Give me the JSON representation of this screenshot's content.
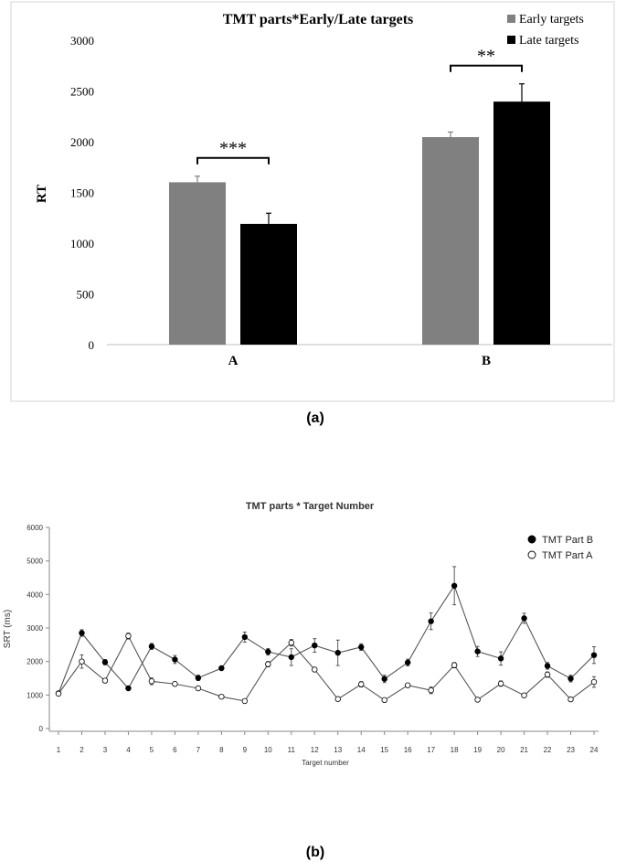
{
  "figure_labels": {
    "a": "(a)",
    "b": "(b)"
  },
  "chart_data": [
    {
      "type": "bar",
      "title": "TMT parts*Early/Late targets",
      "xlabel": "",
      "ylabel": "RT",
      "ylim": [
        0,
        3000
      ],
      "yticks": [
        0,
        500,
        1000,
        1500,
        2000,
        2500,
        3000
      ],
      "categories": [
        "A",
        "B"
      ],
      "series": [
        {
          "name": "Early targets",
          "color": "#808080",
          "values": [
            1600,
            2045
          ],
          "errors": [
            60,
            50
          ]
        },
        {
          "name": "Late targets",
          "color": "#000000",
          "values": [
            1190,
            2395
          ],
          "errors": [
            105,
            175
          ]
        }
      ],
      "significance": [
        {
          "category": "A",
          "label": "***"
        },
        {
          "category": "B",
          "label": "**"
        }
      ],
      "legend_position": "top-right"
    },
    {
      "type": "line",
      "title": "TMT parts * Target Number",
      "xlabel": "Target number",
      "ylabel": "SRT (ms)",
      "ylim": [
        0,
        6000
      ],
      "yticks": [
        0,
        1000,
        2000,
        3000,
        4000,
        5000,
        6000
      ],
      "x": [
        1,
        2,
        3,
        4,
        5,
        6,
        7,
        8,
        9,
        10,
        11,
        12,
        13,
        14,
        15,
        16,
        17,
        18,
        19,
        20,
        21,
        22,
        23,
        24
      ],
      "series": [
        {
          "name": "TMT Part B",
          "marker": "filled",
          "values": [
            1050,
            2850,
            1980,
            1200,
            2450,
            2060,
            1510,
            1800,
            2730,
            2290,
            2130,
            2480,
            2260,
            2430,
            1480,
            1970,
            3200,
            4260,
            2300,
            2090,
            3290,
            1870,
            1490,
            2190
          ],
          "errors": [
            60,
            100,
            80,
            60,
            90,
            120,
            80,
            60,
            150,
            100,
            250,
            200,
            380,
            100,
            110,
            100,
            250,
            570,
            150,
            200,
            150,
            100,
            100,
            250
          ]
        },
        {
          "name": "TMT Part A",
          "marker": "open",
          "values": [
            1040,
            2000,
            1430,
            2760,
            1410,
            1330,
            1200,
            950,
            820,
            1920,
            2560,
            1760,
            880,
            1320,
            850,
            1290,
            1140,
            1890,
            860,
            1340,
            990,
            1610,
            870,
            1390
          ],
          "errors": [
            60,
            200,
            60,
            90,
            100,
            60,
            60,
            50,
            40,
            80,
            100,
            60,
            40,
            80,
            40,
            50,
            100,
            80,
            40,
            80,
            40,
            80,
            40,
            160
          ]
        }
      ],
      "legend_position": "top-right"
    }
  ]
}
